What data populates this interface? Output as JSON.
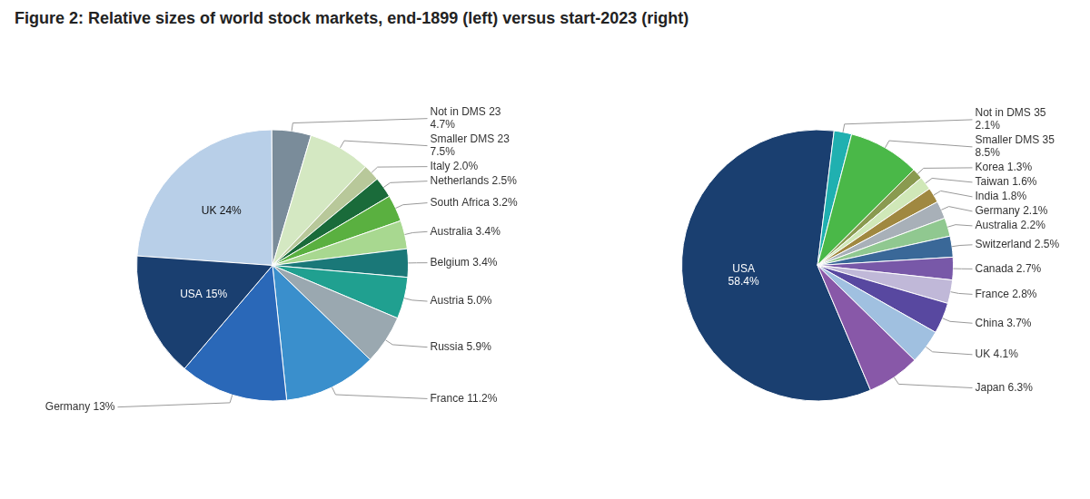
{
  "title": "Figure 2: Relative sizes of world stock markets, end-1899 (left) versus start-2023 (right)",
  "chart_data": [
    {
      "type": "pie",
      "categories": [
        "UK",
        "Not in DMS 23",
        "Smaller DMS 23",
        "Italy",
        "Netherlands",
        "South Africa",
        "Australia",
        "Belgium",
        "Austria",
        "Russia",
        "France",
        "Germany",
        "USA"
      ],
      "values": [
        24.0,
        4.7,
        7.5,
        2.0,
        2.5,
        3.2,
        3.4,
        3.4,
        5.0,
        5.9,
        11.2,
        13.0,
        15.0
      ],
      "colors": [
        "#b8cfe8",
        "#7a8c9a",
        "#d4e8c2",
        "#b8c89a",
        "#1a6b3a",
        "#5ab040",
        "#a8d890",
        "#1a7878",
        "#20a090",
        "#9aa8b0",
        "#3a8fcc",
        "#2a68b8",
        "#1a3f70"
      ],
      "data_labels": true,
      "value_labels": [
        "UK 24%",
        "Not in DMS 23\n4.7%",
        "Smaller DMS 23\n7.5%",
        "Italy 2.0%",
        "Netherlands 2.5%",
        "South Africa 3.2%",
        "Australia 3.4%",
        "Belgium 3.4%",
        "Austria 5.0%",
        "Russia 5.9%",
        "France 11.2%",
        "Germany 13%",
        "USA 15%"
      ]
    },
    {
      "type": "pie",
      "categories": [
        "USA",
        "Not in DMS 35",
        "Smaller DMS 35",
        "Korea",
        "Taiwan",
        "India",
        "Germany",
        "Australia",
        "Switzerland",
        "Canada",
        "France",
        "China",
        "UK",
        "Japan"
      ],
      "values": [
        58.4,
        2.1,
        8.5,
        1.3,
        1.6,
        1.8,
        2.1,
        2.2,
        2.5,
        2.7,
        2.8,
        3.7,
        4.1,
        6.3
      ],
      "colors": [
        "#1a3f70",
        "#20b0b0",
        "#4ab848",
        "#8a9a50",
        "#d0e8b8",
        "#a08840",
        "#a8b0b8",
        "#90c890",
        "#3a6898",
        "#7858a8",
        "#c0b8d8",
        "#5848a0",
        "#a0c0e0",
        "#8858a8"
      ],
      "data_labels": true,
      "value_labels": [
        "USA\n58.4%",
        "Not in DMS 35\n2.1%",
        "Smaller DMS 35\n8.5%",
        "Korea 1.3%",
        "Taiwan 1.6%",
        "India 1.8%",
        "Germany 2.1%",
        "Australia 2.2%",
        "Switzerland 2.5%",
        "Canada 2.7%",
        "France 2.8%",
        "China 3.7%",
        "UK 4.1%",
        "Japan 6.3%"
      ]
    }
  ]
}
